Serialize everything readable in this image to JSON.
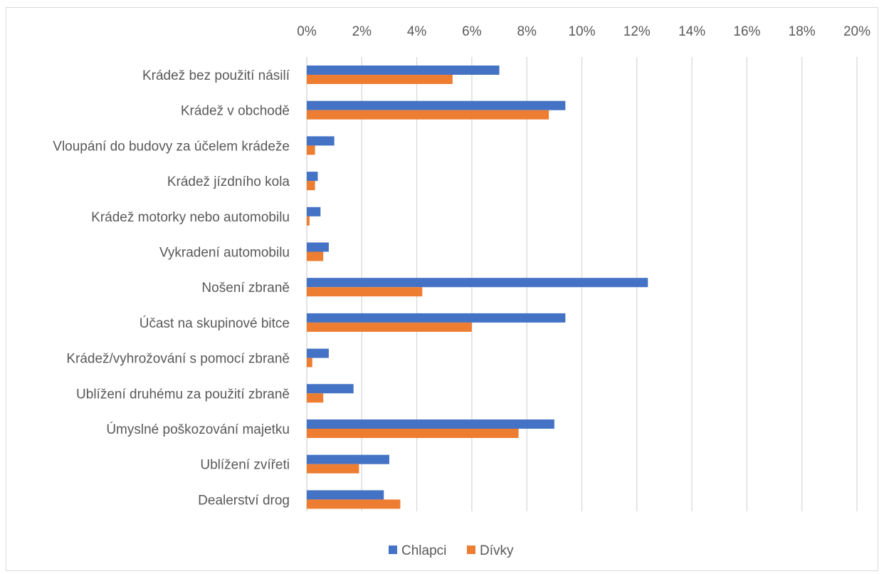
{
  "chart_data": {
    "type": "bar",
    "orientation": "horizontal",
    "categories": [
      "Krádež bez použití násilí",
      "Krádež v obchodě",
      "Vloupání do budovy za účelem krádeže",
      "Krádež jízdního kola",
      "Krádež motorky nebo automobilu",
      "Vykradení automobilu",
      "Nošení zbraně",
      "Účast na skupinové bitce",
      "Krádež/vyhrožování s pomocí zbraně",
      "Ublížení druhému za použití zbraně",
      "Úmyslné poškozování majetku",
      "Ublížení zvířeti",
      "Dealerství drog"
    ],
    "series": [
      {
        "name": "Chlapci",
        "color": "#4472c4",
        "values": [
          7.0,
          9.4,
          1.0,
          0.4,
          0.5,
          0.8,
          12.4,
          9.4,
          0.8,
          1.7,
          9.0,
          3.0,
          2.8
        ]
      },
      {
        "name": "Dívky",
        "color": "#ed7d31",
        "values": [
          5.3,
          8.8,
          0.3,
          0.3,
          0.1,
          0.6,
          4.2,
          6.0,
          0.2,
          0.6,
          7.7,
          1.9,
          3.4
        ]
      }
    ],
    "xlim": [
      0,
      20
    ],
    "ticks": [
      "0%",
      "2%",
      "4%",
      "6%",
      "8%",
      "10%",
      "12%",
      "14%",
      "16%",
      "18%",
      "20%"
    ],
    "grid": true,
    "legend_position": "bottom"
  }
}
